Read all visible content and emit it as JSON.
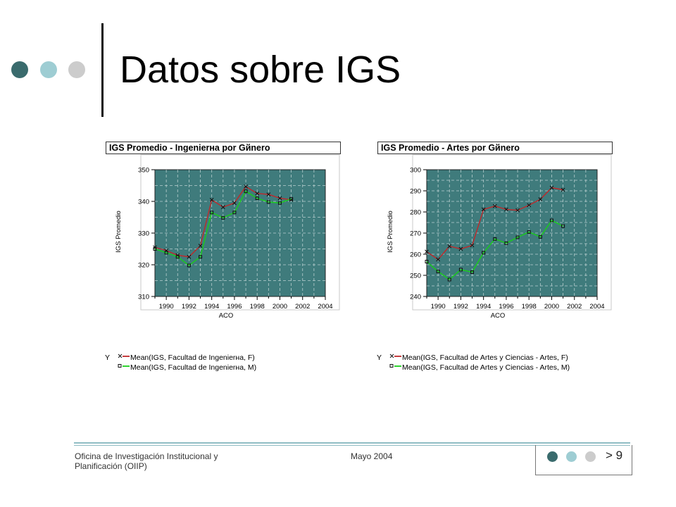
{
  "slide": {
    "title": "Datos sobre IGS",
    "footer_left_line1": "Oficina de Investigación Institucional y",
    "footer_left_line2": "Planificación (OIIP)",
    "footer_center": "Mayo 2004",
    "page_number": "> 9",
    "colors": {
      "dot_dark": "#3a6b6d",
      "dot_mid": "#9ecdd3",
      "dot_light": "#cccccc",
      "plot_bg": "#3f7b7c",
      "series_f": "#c0282a",
      "series_m": "#18d018"
    }
  },
  "chart_data": [
    {
      "type": "line",
      "title": "IGS Promedio - Ingenierнa por Gйnero",
      "xlabel": "AСO",
      "ylabel": "IGS Promedio",
      "xlim": [
        1989,
        2004
      ],
      "ylim": [
        310,
        350
      ],
      "xticks": [
        1990,
        1992,
        1994,
        1996,
        1998,
        2000,
        2002,
        2004
      ],
      "yticks": [
        310,
        320,
        330,
        340,
        350
      ],
      "grid": true,
      "legend_title": "Y",
      "legend_position": "bottom",
      "x": [
        1989,
        1990,
        1991,
        1992,
        1993,
        1994,
        1995,
        1996,
        1997,
        1998,
        1999,
        2000,
        2001,
        2002
      ],
      "series": [
        {
          "name": "Mean(IGS, Facultad de Ingenierнa, F)",
          "marker": "x",
          "values": [
            325.5,
            324.5,
            323,
            322.5,
            326,
            340.5,
            338.2,
            339.5,
            344.7,
            342.5,
            342.2,
            341,
            340.5,
            null
          ]
        },
        {
          "name": "Mean(IGS, Facultad de Ingenierнa, M)",
          "marker": "square",
          "values": [
            325,
            323.8,
            322.5,
            319.8,
            322.5,
            336.5,
            334.8,
            336.5,
            343.2,
            341,
            339.8,
            339.5,
            340.8,
            null
          ]
        }
      ]
    },
    {
      "type": "line",
      "title": "IGS Promedio - Artes por Gйnero",
      "xlabel": "AСO",
      "ylabel": "IGS Promedio",
      "xlim": [
        1989,
        2004
      ],
      "ylim": [
        240,
        300
      ],
      "xticks": [
        1990,
        1992,
        1994,
        1996,
        1998,
        2000,
        2002,
        2004
      ],
      "yticks": [
        240,
        250,
        260,
        270,
        280,
        290,
        300
      ],
      "grid": true,
      "legend_title": "Y",
      "legend_position": "bottom",
      "x": [
        1989,
        1990,
        1991,
        1992,
        1993,
        1994,
        1995,
        1996,
        1997,
        1998,
        1999,
        2000,
        2001,
        2002
      ],
      "series": [
        {
          "name": "Mean(IGS, Facultad de Artes y Ciencias - Artes, F)",
          "marker": "x",
          "values": [
            261.2,
            257.5,
            263.8,
            262.5,
            264.2,
            281.2,
            282.8,
            281.2,
            280.8,
            283.2,
            286,
            291.5,
            290.5,
            null
          ]
        },
        {
          "name": "Mean(IGS, Facultad de Artes y Ciencias - Artes, M)",
          "marker": "square",
          "values": [
            256.5,
            251.8,
            248,
            252.7,
            251.5,
            260.7,
            267.2,
            265.2,
            268,
            270.5,
            268.2,
            276,
            273.3,
            null
          ]
        }
      ]
    }
  ]
}
